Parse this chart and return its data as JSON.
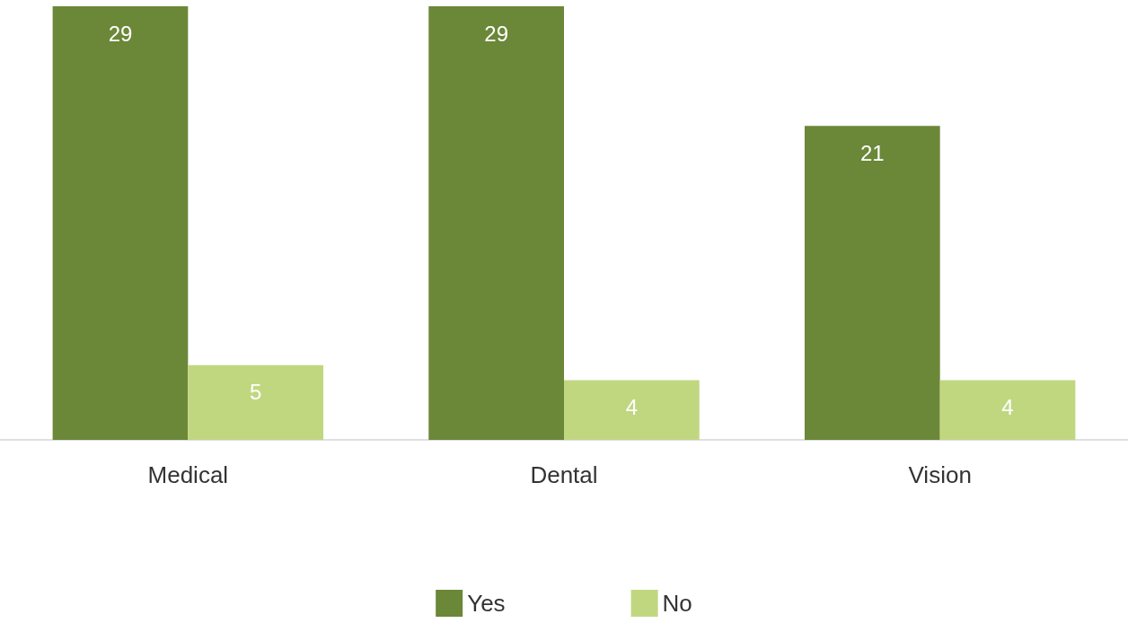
{
  "chart_data": {
    "type": "bar",
    "categories": [
      "Medical",
      "Dental",
      "Vision"
    ],
    "series": [
      {
        "name": "Yes",
        "color": "#6b8738",
        "values": [
          29,
          29,
          21
        ]
      },
      {
        "name": "No",
        "color": "#c0d780",
        "values": [
          5,
          4,
          4
        ]
      }
    ],
    "data_labels": true,
    "legend": "bottom",
    "tick_labels": "x"
  }
}
